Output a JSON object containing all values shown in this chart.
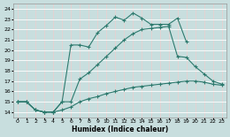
{
  "xlabel": "Humidex (Indice chaleur)",
  "bg_color": "#c8dede",
  "grid_color": "#dce8e8",
  "line_color": "#2d7a6e",
  "xlim": [
    -0.5,
    23.5
  ],
  "ylim": [
    13.5,
    24.5
  ],
  "xticks": [
    0,
    1,
    2,
    3,
    4,
    5,
    6,
    7,
    8,
    9,
    10,
    11,
    12,
    13,
    14,
    15,
    16,
    17,
    18,
    19,
    20,
    21,
    22,
    23
  ],
  "yticks": [
    14,
    15,
    16,
    17,
    18,
    19,
    20,
    21,
    22,
    23,
    24
  ],
  "line1_x": [
    0,
    1,
    2,
    3,
    4,
    5,
    6,
    7,
    8,
    9,
    10,
    11,
    12,
    13,
    14,
    15,
    16,
    17,
    18,
    19,
    20
  ],
  "line1_y": [
    15.0,
    15.0,
    14.2,
    14.0,
    14.0,
    15.0,
    20.5,
    20.5,
    20.3,
    21.7,
    22.4,
    23.2,
    22.9,
    23.6,
    23.1,
    22.5,
    22.5,
    22.5,
    23.1,
    20.8,
    null
  ],
  "line2_x": [
    0,
    1,
    2,
    3,
    4,
    5,
    6,
    7,
    8,
    9,
    10,
    11,
    12,
    13,
    14,
    15,
    16,
    17,
    18,
    19,
    20,
    21,
    22,
    23
  ],
  "line2_y": [
    15.0,
    15.0,
    14.2,
    14.0,
    14.0,
    15.0,
    15.0,
    17.2,
    17.8,
    18.6,
    19.4,
    20.2,
    21.0,
    21.6,
    22.0,
    22.1,
    22.2,
    22.3,
    19.4,
    19.3,
    18.4,
    17.7,
    17.0,
    16.7
  ],
  "line3_x": [
    0,
    1,
    2,
    3,
    4,
    5,
    6,
    7,
    8,
    9,
    10,
    11,
    12,
    13,
    14,
    15,
    16,
    17,
    18,
    19,
    20,
    21,
    22,
    23
  ],
  "line3_y": [
    15.0,
    15.0,
    14.2,
    14.0,
    14.0,
    14.2,
    14.5,
    15.0,
    15.3,
    15.5,
    15.8,
    16.0,
    16.2,
    16.4,
    16.5,
    16.6,
    16.7,
    16.8,
    16.9,
    17.0,
    17.0,
    16.9,
    16.7,
    16.6
  ]
}
